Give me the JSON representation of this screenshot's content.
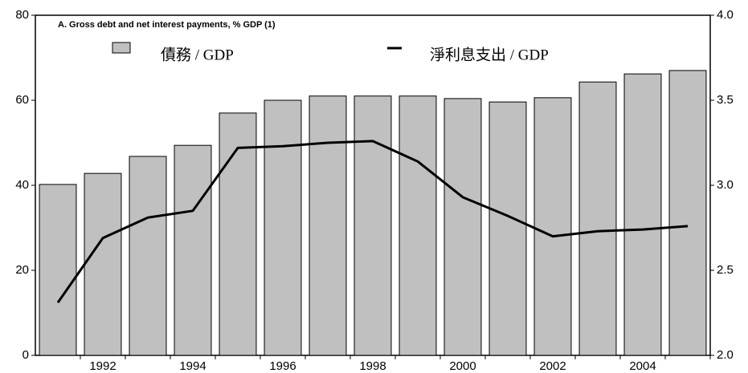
{
  "chart_data": {
    "type": "bar",
    "title": "A. Gross debt and net interest payments, % GDP (1)",
    "categories": [
      null,
      "1992",
      null,
      "1994",
      null,
      "1996",
      null,
      "1998",
      null,
      "2000",
      null,
      "2002",
      null,
      "2004",
      null
    ],
    "series": [
      {
        "name": "債務 / GDP",
        "color": "#c0c0c0",
        "type": "bar",
        "values": [
          40.2,
          42.8,
          46.8,
          49.4,
          57,
          60,
          61,
          61,
          61,
          60.4,
          59.6,
          60.6,
          64.3,
          66.2,
          67
        ]
      },
      {
        "name": "淨利息支出 / GDP",
        "color": "#000000",
        "type": "line",
        "axis": "y2",
        "values": [
          2.31,
          2.69,
          2.81,
          2.85,
          3.22,
          3.23,
          3.25,
          3.26,
          3.14,
          2.93,
          2.82,
          2.7,
          2.73,
          2.74,
          2.76
        ]
      }
    ],
    "ylim": [
      0,
      80
    ],
    "yticks": [
      0,
      20,
      40,
      60,
      80
    ],
    "y2lim": [
      2.0,
      4.0
    ],
    "y2ticks": [
      {
        "value": 2.0,
        "label": "2.0"
      },
      2.5,
      {
        "value": 3.0,
        "label": "3.0"
      },
      3.5,
      {
        "value": 4.0,
        "label": "4.0"
      }
    ],
    "grid": false
  }
}
